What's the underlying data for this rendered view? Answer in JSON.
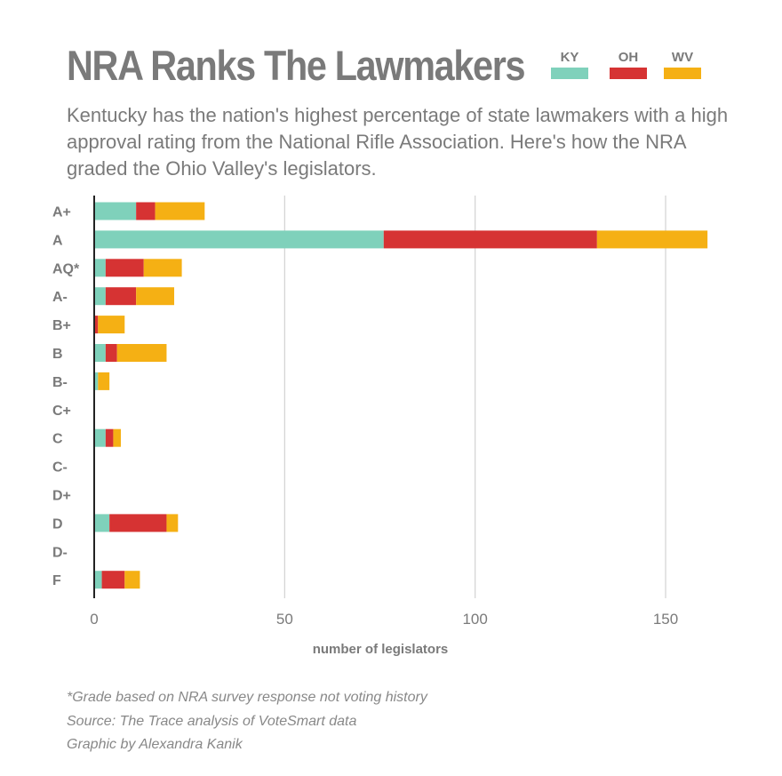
{
  "title": "NRA Ranks The Lawmakers",
  "subtitle": "Kentucky has the nation's highest percentage of state lawmakers with a high approval rating from the National Rifle Association. Here's how the NRA graded the Ohio Valley's legislators.",
  "legend": [
    {
      "label": "KY",
      "color": "#7fd1bb"
    },
    {
      "label": "OH",
      "color": "#d63333"
    },
    {
      "label": "WV",
      "color": "#f5b014"
    }
  ],
  "footer": {
    "note": "*Grade based on NRA survey response not voting history",
    "source": "Source: The Trace analysis of VoteSmart data",
    "credit": "Graphic by Alexandra Kanik"
  },
  "chart_data": {
    "type": "bar",
    "orientation": "horizontal",
    "stacked": true,
    "categories": [
      "A+",
      "A",
      "AQ*",
      "A-",
      "B+",
      "B",
      "B-",
      "C+",
      "C",
      "C-",
      "D+",
      "D",
      "D-",
      "F"
    ],
    "series": [
      {
        "name": "KY",
        "color": "#7fd1bb",
        "values": [
          11,
          76,
          3,
          3,
          0,
          3,
          1,
          0,
          3,
          0,
          0,
          4,
          0,
          2
        ]
      },
      {
        "name": "OH",
        "color": "#d63333",
        "values": [
          5,
          56,
          10,
          8,
          1,
          3,
          0,
          0,
          2,
          0,
          0,
          15,
          0,
          6
        ]
      },
      {
        "name": "WV",
        "color": "#f5b014",
        "values": [
          13,
          29,
          10,
          10,
          7,
          13,
          3,
          0,
          2,
          0,
          0,
          3,
          0,
          4
        ]
      }
    ],
    "xlabel": "number of legislators",
    "ylabel": "",
    "xlim": [
      0,
      160
    ],
    "xticks": [
      0,
      50,
      100,
      150
    ],
    "grid": true
  }
}
